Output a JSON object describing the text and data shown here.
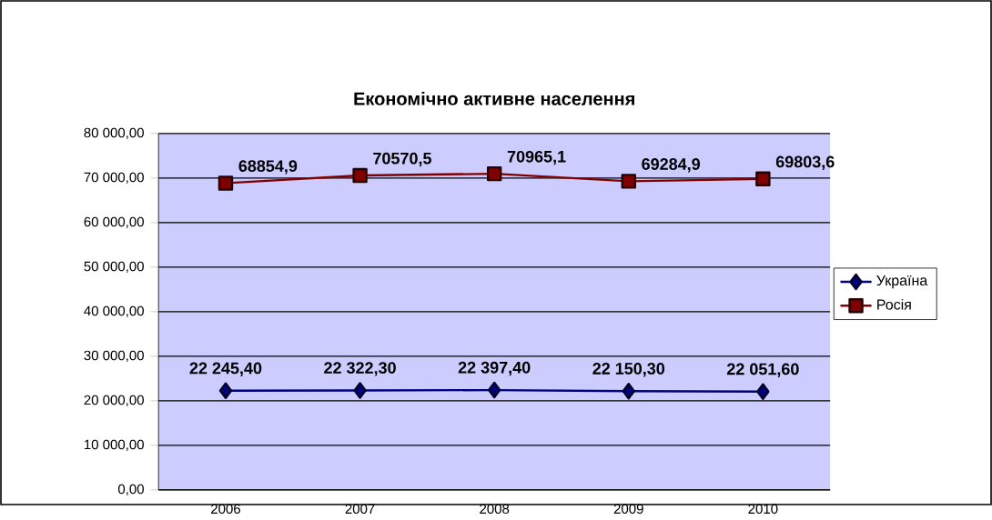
{
  "chart_data": {
    "type": "line",
    "title": "Економічно активне населення",
    "categories": [
      "2006",
      "2007",
      "2008",
      "2009",
      "2010"
    ],
    "series": [
      {
        "name": "Україна",
        "color": "#000080",
        "marker": "diamond",
        "values": [
          22245.4,
          22322.3,
          22397.4,
          22150.3,
          22051.6
        ],
        "value_labels": [
          "22 245,40",
          "22 322,30",
          "22 397,40",
          "22 150,30",
          "22 051,60"
        ]
      },
      {
        "name": "Росія",
        "color": "#800000",
        "marker": "square",
        "values": [
          68854.9,
          70570.5,
          70965.1,
          69284.9,
          69803.6
        ],
        "value_labels": [
          "68854,9",
          "70570,5",
          "70965,1",
          "69284,9",
          "69803,6"
        ]
      }
    ],
    "ylim": [
      0,
      80000
    ],
    "yticks": [
      {
        "value": 0,
        "label": "0,00"
      },
      {
        "value": 10000,
        "label": "10 000,00"
      },
      {
        "value": 20000,
        "label": "20 000,00"
      },
      {
        "value": 30000,
        "label": "30 000,00"
      },
      {
        "value": 40000,
        "label": "40 000,00"
      },
      {
        "value": 50000,
        "label": "50 000,00"
      },
      {
        "value": 60000,
        "label": "60 000,00"
      },
      {
        "value": 70000,
        "label": "70 000,00"
      },
      {
        "value": 80000,
        "label": "80 000,00"
      }
    ],
    "grid": "y",
    "legend": "right"
  }
}
